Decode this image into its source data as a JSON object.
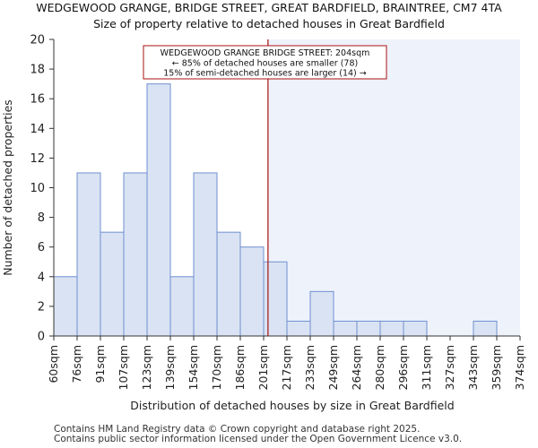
{
  "chart_data": {
    "type": "bar",
    "title": "WEDGEWOOD GRANGE, BRIDGE STREET, GREAT BARDFIELD, BRAINTREE, CM7 4TA",
    "subtitle": "Size of property relative to detached houses in Great Bardfield",
    "xlabel": "Distribution of detached houses by size in Great Bardfield",
    "ylabel": "Number of detached properties",
    "bin_edges": [
      60,
      76,
      91,
      107,
      123,
      139,
      154,
      170,
      186,
      201,
      217,
      233,
      249,
      264,
      280,
      296,
      311,
      327,
      343,
      359,
      374
    ],
    "x_tick_labels": [
      "60sqm",
      "76sqm",
      "91sqm",
      "107sqm",
      "123sqm",
      "139sqm",
      "154sqm",
      "170sqm",
      "186sqm",
      "201sqm",
      "217sqm",
      "233sqm",
      "249sqm",
      "264sqm",
      "280sqm",
      "296sqm",
      "311sqm",
      "327sqm",
      "343sqm",
      "359sqm",
      "374sqm"
    ],
    "values": [
      4,
      11,
      7,
      11,
      17,
      4,
      11,
      7,
      6,
      5,
      1,
      3,
      1,
      1,
      1,
      1,
      0,
      0,
      1,
      0
    ],
    "ylim": [
      0,
      20
    ],
    "y_ticks": [
      0,
      2,
      4,
      6,
      8,
      10,
      12,
      14,
      16,
      18,
      20
    ],
    "grid": false,
    "marker": {
      "value": 204,
      "color": "#aa1111",
      "annotation": [
        "WEDGEWOOD GRANGE BRIDGE STREET: 204sqm",
        "← 85% of detached houses are smaller (78)",
        "15% of semi-detached houses are larger (14) →"
      ]
    },
    "colors": {
      "bar_fill": "#dae3f3",
      "bar_stroke": "#6f8fd0",
      "highlight_region": "#eef2fb",
      "axis": "#333333"
    }
  },
  "footer": {
    "line1": "Contains HM Land Registry data © Crown copyright and database right 2025.",
    "line2": "Contains public sector information licensed under the Open Government Licence v3.0."
  }
}
